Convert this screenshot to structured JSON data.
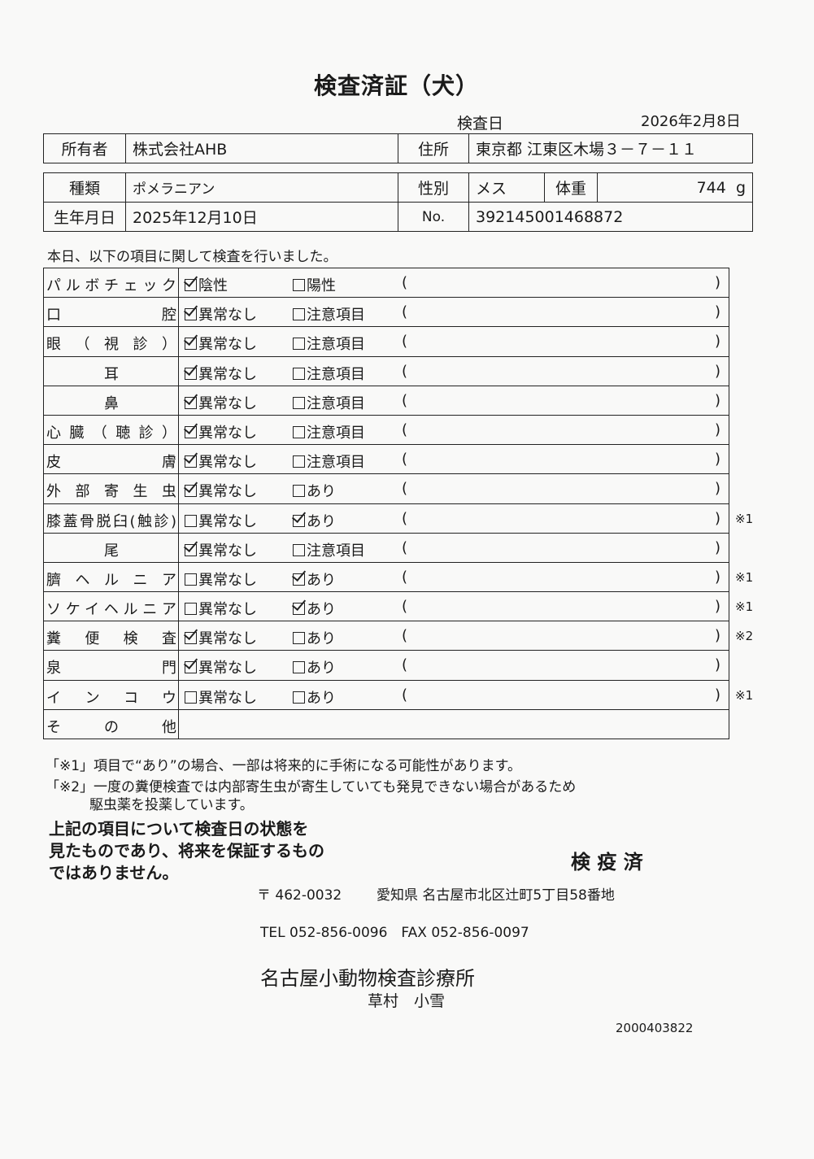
{
  "title": "検査済証（犬）",
  "exam_date_label": "検査日",
  "exam_date": "2026年2月8日",
  "owner": {
    "label": "所有者",
    "value": "株式会社AHB",
    "address_label": "住所",
    "address": "東京都 江東区木場３－７－１１"
  },
  "pet": {
    "breed_label": "種類",
    "breed": "ポメラニアン",
    "sex_label": "性別",
    "sex": "メス",
    "weight_label": "体重",
    "weight": "744",
    "weight_unit": "g",
    "birth_label": "生年月日",
    "birth": "2025年12月10日",
    "no_label": "No.",
    "no": "392145001468872"
  },
  "intro": "本日、以下の項目に関して検査を行いました。",
  "rows": [
    {
      "label": "パルボチェック",
      "opt1": "陰性",
      "opt2": "陽性",
      "checked": 1,
      "note": ""
    },
    {
      "label": "口腔",
      "opt1": "異常なし",
      "opt2": "注意項目",
      "checked": 1,
      "note": ""
    },
    {
      "label": "眼（視診）",
      "opt1": "異常なし",
      "opt2": "注意項目",
      "checked": 1,
      "note": ""
    },
    {
      "label": "耳",
      "opt1": "異常なし",
      "opt2": "注意項目",
      "checked": 1,
      "note": "",
      "center": true
    },
    {
      "label": "鼻",
      "opt1": "異常なし",
      "opt2": "注意項目",
      "checked": 1,
      "note": "",
      "center": true
    },
    {
      "label": "心臓（聴診）",
      "opt1": "異常なし",
      "opt2": "注意項目",
      "checked": 1,
      "note": ""
    },
    {
      "label": "皮膚",
      "opt1": "異常なし",
      "opt2": "注意項目",
      "checked": 1,
      "note": ""
    },
    {
      "label": "外部寄生虫",
      "opt1": "異常なし",
      "opt2": "あり",
      "checked": 1,
      "note": ""
    },
    {
      "label": "膝蓋骨脱臼(触診)",
      "opt1": "異常なし",
      "opt2": "あり",
      "checked": 2,
      "note": "※1"
    },
    {
      "label": "尾",
      "opt1": "異常なし",
      "opt2": "注意項目",
      "checked": 1,
      "note": "",
      "center": true
    },
    {
      "label": "臍ヘルニア",
      "opt1": "異常なし",
      "opt2": "あり",
      "checked": 2,
      "note": "※1"
    },
    {
      "label": "ソケイヘルニア",
      "opt1": "異常なし",
      "opt2": "あり",
      "checked": 2,
      "note": "※1"
    },
    {
      "label": "糞便検査",
      "opt1": "異常なし",
      "opt2": "あり",
      "checked": 1,
      "note": "※2"
    },
    {
      "label": "泉門",
      "opt1": "異常なし",
      "opt2": "あり",
      "checked": 1,
      "note": ""
    },
    {
      "label": "インコウ",
      "opt1": "異常なし",
      "opt2": "あり",
      "checked": 0,
      "note": "※1"
    }
  ],
  "other_label": "その他",
  "paren_open": "(",
  "paren_close": ")",
  "notes": {
    "n1": "「※1」項目で“あり”の場合、一部は将来的に手術になる可能性があります。",
    "n2a": "「※2」一度の糞便検査では内部寄生虫が寄生していても発見できない場合があるため",
    "n2b": "駆虫薬を投薬しています。"
  },
  "disclaimer": [
    "上記の項目について検査日の状態を",
    "見たものであり、将来を保証するもの",
    "ではありません。"
  ],
  "stamp": "検 疫 済",
  "clinic": {
    "postal": "〒 462-0032",
    "address": "愛知県 名古屋市北区辻町5丁目58番地",
    "phone": "TEL 052-856-0096　FAX 052-856-0097",
    "name": "名古屋小動物検査診療所",
    "doctor": "草村　小雪",
    "code": "2000403822"
  }
}
